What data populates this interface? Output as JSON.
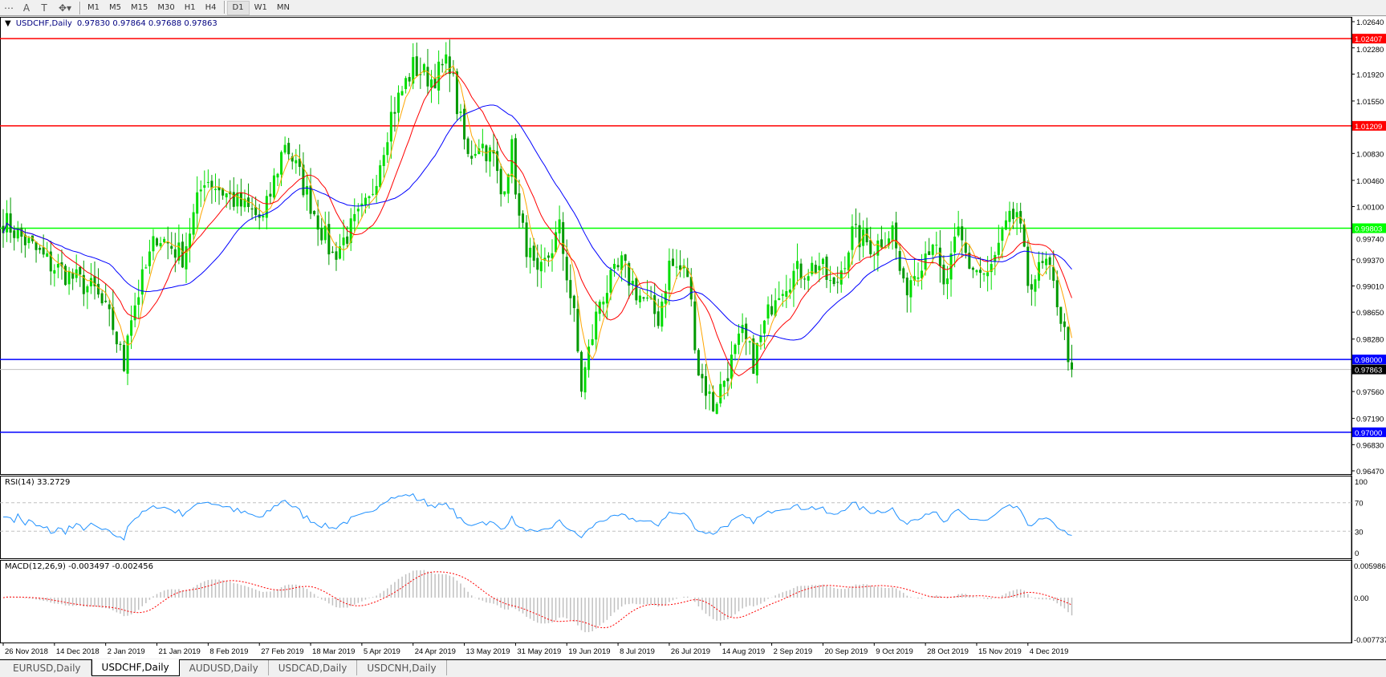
{
  "toolbar": {
    "tools": [
      {
        "icon": "text-label-icon",
        "label": "A"
      },
      {
        "icon": "text-box-icon",
        "label": "T"
      },
      {
        "icon": "arrows-tool-icon",
        "label": ""
      }
    ],
    "timeframes": [
      "M1",
      "M5",
      "M15",
      "M30",
      "H1",
      "H4",
      "D1",
      "W1",
      "MN"
    ],
    "active_timeframe": "D1"
  },
  "chart": {
    "title": "USDCHF,Daily",
    "ohlc": "0.97830 0.97864 0.97688 0.97863",
    "current_price": "0.97863"
  },
  "price_axis": [
    "1.02640",
    "1.02280",
    "1.01920",
    "1.01550",
    "1.00830",
    "1.00460",
    "1.00100",
    "0.99740",
    "0.99370",
    "0.99010",
    "0.98650",
    "0.98280",
    "0.97560",
    "0.97190",
    "0.96830",
    "0.96470"
  ],
  "levels": [
    {
      "price": "1.02407",
      "color": "#ff0000"
    },
    {
      "price": "1.01209",
      "color": "#ff0000"
    },
    {
      "price": "0.99803",
      "color": "#00ff00"
    },
    {
      "price": "0.98000",
      "color": "#0000ff"
    },
    {
      "price": "0.97000",
      "color": "#0000ff"
    }
  ],
  "rsi": {
    "label": "RSI(14) 33.2729",
    "ticks": [
      "100",
      "70",
      "30",
      "0"
    ]
  },
  "macd": {
    "label": "MACD(12,26,9) -0.003497 -0.002456",
    "ticks": [
      "0.005986",
      "0.00",
      "-0.007737"
    ]
  },
  "date_axis": [
    "26 Nov 2018",
    "14 Dec 2018",
    "2 Jan 2019",
    "21 Jan 2019",
    "8 Feb 2019",
    "27 Feb 2019",
    "18 Mar 2019",
    "5 Apr 2019",
    "24 Apr 2019",
    "13 May 2019",
    "31 May 2019",
    "19 Jun 2019",
    "8 Jul 2019",
    "26 Jul 2019",
    "14 Aug 2019",
    "2 Sep 2019",
    "20 Sep 2019",
    "9 Oct 2019",
    "28 Oct 2019",
    "15 Nov 2019",
    "4 Dec 2019"
  ],
  "tabs": [
    {
      "label": "EURUSD,Daily",
      "active": false
    },
    {
      "label": "USDCHF,Daily",
      "active": true
    },
    {
      "label": "AUDUSD,Daily",
      "active": false
    },
    {
      "label": "USDCAD,Daily",
      "active": false
    },
    {
      "label": "USDCNH,Daily",
      "active": false
    }
  ],
  "colors": {
    "bull": "#00dd00",
    "bear": "#009900",
    "ma_fast": "#ffa500",
    "ma_mid": "#ff0000",
    "ma_slow": "#0000ff",
    "rsi": "#1e90ff",
    "macd_hist": "#c0c0c0",
    "macd_signal": "#ff0000"
  },
  "chart_data": {
    "type": "candlestick",
    "symbol": "USDCHF",
    "timeframe": "Daily",
    "ylim": [
      0.9647,
      1.0264
    ],
    "close_path": [
      [
        0,
        0.9991
      ],
      [
        13,
        0.993
      ],
      [
        25,
        0.9894
      ],
      [
        30,
        0.9845
      ],
      [
        33,
        0.979
      ],
      [
        34,
        0.9845
      ],
      [
        42,
        0.9972
      ],
      [
        49,
        0.9942
      ],
      [
        55,
        1.0051
      ],
      [
        64,
        1.0015
      ],
      [
        71,
        0.9991
      ],
      [
        77,
        1.01
      ],
      [
        83,
        1.0027
      ],
      [
        90,
        0.9942
      ],
      [
        95,
        0.9979
      ],
      [
        100,
        1.0015
      ],
      [
        106,
        1.0136
      ],
      [
        112,
        1.0202
      ],
      [
        117,
        1.0185
      ],
      [
        122,
        1.0209
      ],
      [
        124,
        1.0148
      ],
      [
        127,
        1.0076
      ],
      [
        130,
        1.01
      ],
      [
        134,
        1.0076
      ],
      [
        136,
        1.0027
      ],
      [
        139,
        1.0088
      ],
      [
        141,
        0.9991
      ],
      [
        146,
        0.9906
      ],
      [
        152,
        0.9979
      ],
      [
        156,
        0.9857
      ],
      [
        158,
        0.9761
      ],
      [
        163,
        0.9882
      ],
      [
        169,
        0.993
      ],
      [
        173,
        0.9894
      ],
      [
        179,
        0.9857
      ],
      [
        182,
        0.993
      ],
      [
        187,
        0.9918
      ],
      [
        190,
        0.9785
      ],
      [
        194,
        0.9736
      ],
      [
        197,
        0.9773
      ],
      [
        202,
        0.9833
      ],
      [
        205,
        0.9797
      ],
      [
        211,
        0.9894
      ],
      [
        216,
        0.9918
      ],
      [
        223,
        0.993
      ],
      [
        227,
        0.9894
      ],
      [
        232,
        0.9972
      ],
      [
        238,
        0.9955
      ],
      [
        243,
        0.9979
      ],
      [
        246,
        0.9894
      ],
      [
        250,
        0.993
      ],
      [
        254,
        0.9967
      ],
      [
        257,
        0.9894
      ],
      [
        261,
        0.9972
      ],
      [
        264,
        0.993
      ],
      [
        269,
        0.9912
      ],
      [
        274,
        0.9979
      ],
      [
        277,
        1.0003
      ],
      [
        280,
        0.9906
      ],
      [
        285,
        0.993
      ],
      [
        288,
        0.9882
      ],
      [
        292,
        0.97863
      ]
    ]
  }
}
